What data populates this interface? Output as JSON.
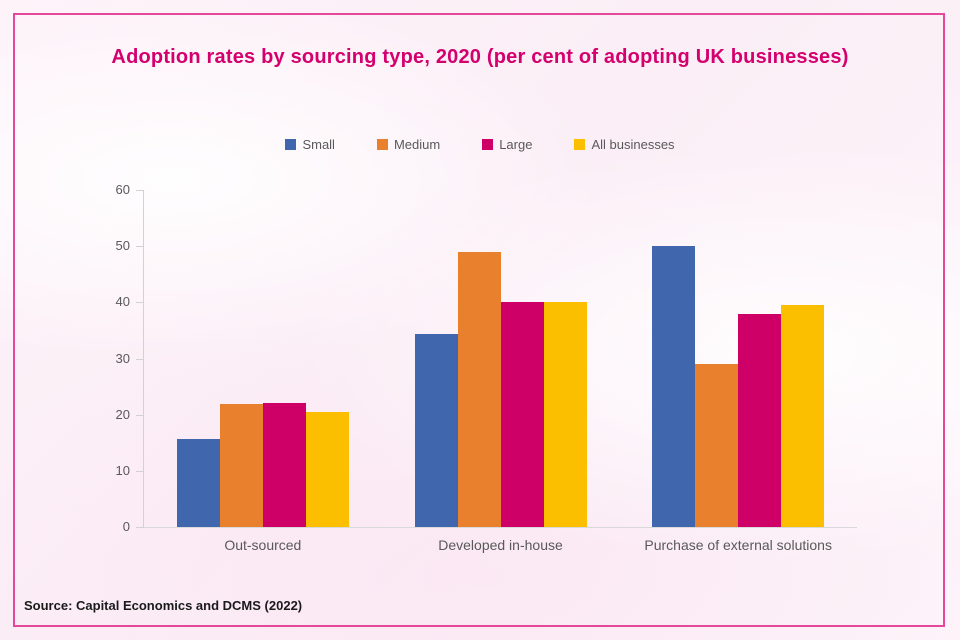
{
  "chart_data": {
    "type": "bar",
    "title": "Adoption rates by sourcing type, 2020 (per cent of adopting UK businesses)",
    "categories": [
      "Out-sourced",
      "Developed in-house",
      "Purchase of external solutions"
    ],
    "series": [
      {
        "name": "Small",
        "color": "#4067ad",
        "values": [
          15.7,
          34.3,
          50
        ]
      },
      {
        "name": "Medium",
        "color": "#e8802e",
        "values": [
          21.9,
          49,
          29
        ]
      },
      {
        "name": "Large",
        "color": "#ce0067",
        "values": [
          22.1,
          40,
          38
        ]
      },
      {
        "name": "All businesses",
        "color": "#fcbf00",
        "values": [
          20.5,
          40,
          39.5
        ]
      }
    ],
    "xlabel": "",
    "ylabel": "",
    "ylim": [
      0,
      60
    ],
    "yticks": [
      0,
      10,
      20,
      30,
      40,
      50,
      60
    ],
    "grid": false,
    "legend_position": "top"
  },
  "footer": {
    "source": "Source: Capital Economics and DCMS (2022)"
  },
  "colors": {
    "title": "#d4006e",
    "border": "#e4489b",
    "axis": "#d2d2d2",
    "label_text": "#595959",
    "source_text": "#1a1a1a"
  }
}
